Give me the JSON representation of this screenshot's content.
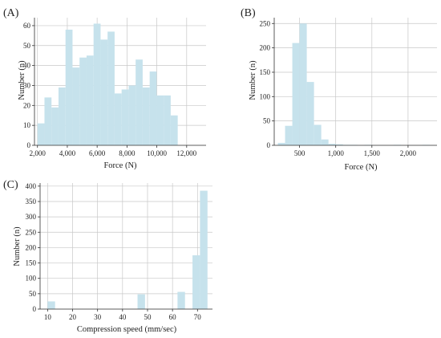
{
  "style": {
    "bar_color": "#c6e2ec",
    "grid_color": "#c8c8c8",
    "axis_color": "#333333"
  },
  "chart_data": [
    {
      "panel": "(A)",
      "type": "bar",
      "xlabel": "Force (N)",
      "ylabel": "Number (n)",
      "xlim": [
        1800,
        13300
      ],
      "ylim": [
        0,
        64
      ],
      "xticks": [
        2000,
        4000,
        6000,
        8000,
        10000,
        12000
      ],
      "xtick_labels": [
        "2,000",
        "4,000",
        "6,000",
        "8,000",
        "10,000",
        "12,000"
      ],
      "yticks": [
        0,
        10,
        20,
        30,
        40,
        50,
        60
      ],
      "grid": true,
      "bins": [
        {
          "x0": 2000,
          "x1": 2470,
          "y": 11
        },
        {
          "x0": 2470,
          "x1": 2940,
          "y": 24
        },
        {
          "x0": 2940,
          "x1": 3410,
          "y": 19
        },
        {
          "x0": 3410,
          "x1": 3880,
          "y": 29
        },
        {
          "x0": 3880,
          "x1": 4350,
          "y": 58
        },
        {
          "x0": 4350,
          "x1": 4820,
          "y": 39
        },
        {
          "x0": 4820,
          "x1": 5290,
          "y": 44
        },
        {
          "x0": 5290,
          "x1": 5760,
          "y": 45
        },
        {
          "x0": 5760,
          "x1": 6230,
          "y": 61
        },
        {
          "x0": 6230,
          "x1": 6700,
          "y": 53
        },
        {
          "x0": 6700,
          "x1": 7170,
          "y": 57
        },
        {
          "x0": 7170,
          "x1": 7640,
          "y": 26
        },
        {
          "x0": 7640,
          "x1": 8110,
          "y": 28
        },
        {
          "x0": 8110,
          "x1": 8580,
          "y": 30
        },
        {
          "x0": 8580,
          "x1": 9050,
          "y": 43
        },
        {
          "x0": 9050,
          "x1": 9520,
          "y": 29
        },
        {
          "x0": 9520,
          "x1": 9990,
          "y": 37
        },
        {
          "x0": 9990,
          "x1": 10460,
          "y": 25
        },
        {
          "x0": 10460,
          "x1": 10930,
          "y": 25
        },
        {
          "x0": 10930,
          "x1": 11400,
          "y": 15
        }
      ]
    },
    {
      "panel": "(B)",
      "type": "bar",
      "xlabel": "Force (N)",
      "ylabel": "Number (n)",
      "xlim": [
        150,
        2400
      ],
      "ylim": [
        0,
        262
      ],
      "xticks": [
        500,
        1000,
        1500,
        2000
      ],
      "xtick_labels": [
        "500",
        "1,000",
        "1,500",
        "2,000"
      ],
      "yticks": [
        0,
        50,
        100,
        150,
        200,
        250
      ],
      "grid": true,
      "bins": [
        {
          "x0": 200,
          "x1": 300,
          "y": 5
        },
        {
          "x0": 300,
          "x1": 400,
          "y": 40
        },
        {
          "x0": 400,
          "x1": 500,
          "y": 210
        },
        {
          "x0": 500,
          "x1": 600,
          "y": 250
        },
        {
          "x0": 600,
          "x1": 700,
          "y": 130
        },
        {
          "x0": 700,
          "x1": 800,
          "y": 42
        },
        {
          "x0": 800,
          "x1": 900,
          "y": 12
        },
        {
          "x0": 900,
          "x1": 1000,
          "y": 3
        },
        {
          "x0": 1000,
          "x1": 1100,
          "y": 2
        },
        {
          "x0": 1100,
          "x1": 1200,
          "y": 1
        },
        {
          "x0": 1200,
          "x1": 1300,
          "y": 1
        },
        {
          "x0": 1400,
          "x1": 1500,
          "y": 1
        },
        {
          "x0": 1800,
          "x1": 1900,
          "y": 1
        },
        {
          "x0": 2200,
          "x1": 2300,
          "y": 1
        }
      ]
    },
    {
      "panel": "(C)",
      "type": "bar",
      "xlabel": "Compression speed (mm/sec)",
      "ylabel": "Number (n)",
      "xlim": [
        7,
        76
      ],
      "ylim": [
        0,
        410
      ],
      "xticks": [
        10,
        20,
        30,
        40,
        50,
        60,
        70
      ],
      "xtick_labels": [
        "10",
        "20",
        "30",
        "40",
        "50",
        "60",
        "70"
      ],
      "yticks": [
        0,
        50,
        100,
        150,
        200,
        250,
        300,
        350,
        400
      ],
      "grid": true,
      "bins": [
        {
          "x0": 10,
          "x1": 13,
          "y": 25
        },
        {
          "x0": 46,
          "x1": 49,
          "y": 48
        },
        {
          "x0": 62,
          "x1": 65,
          "y": 56
        },
        {
          "x0": 68,
          "x1": 71,
          "y": 175
        },
        {
          "x0": 71,
          "x1": 74,
          "y": 385
        }
      ]
    }
  ]
}
